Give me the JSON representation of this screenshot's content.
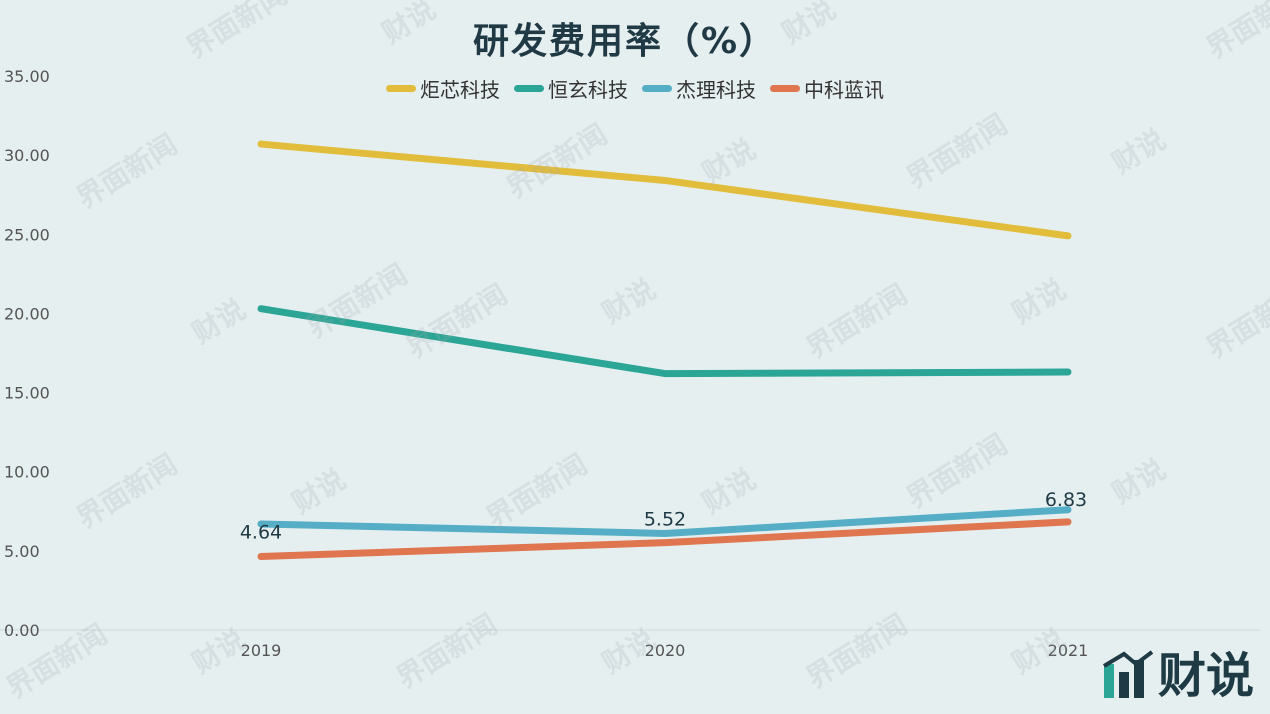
{
  "chart_data": {
    "type": "line",
    "title": "研发费用率（%）",
    "categories": [
      "2019",
      "2020",
      "2021"
    ],
    "ylim": [
      0,
      35
    ],
    "y_ticks": [
      "0.00",
      "5.00",
      "10.00",
      "15.00",
      "20.00",
      "25.00",
      "30.00",
      "35.00"
    ],
    "grid": false,
    "legend_position": "top",
    "series": [
      {
        "name": "炬芯科技",
        "color": "#e2bd3c",
        "values": [
          30.7,
          28.4,
          24.9
        ]
      },
      {
        "name": "恒玄科技",
        "color": "#2ba596",
        "values": [
          20.3,
          16.2,
          16.3
        ]
      },
      {
        "name": "杰理科技",
        "color": "#55aec6",
        "values": [
          6.7,
          6.1,
          7.6
        ]
      },
      {
        "name": "中科蓝讯",
        "color": "#e0764f",
        "values": [
          4.64,
          5.52,
          6.83
        ],
        "data_labels": [
          "4.64",
          "5.52",
          "6.83"
        ]
      }
    ]
  },
  "watermark": {
    "left": "界面新闻",
    "right": "财说"
  },
  "brand": {
    "text": "财说",
    "icon": "bar-chart-logo-icon"
  }
}
